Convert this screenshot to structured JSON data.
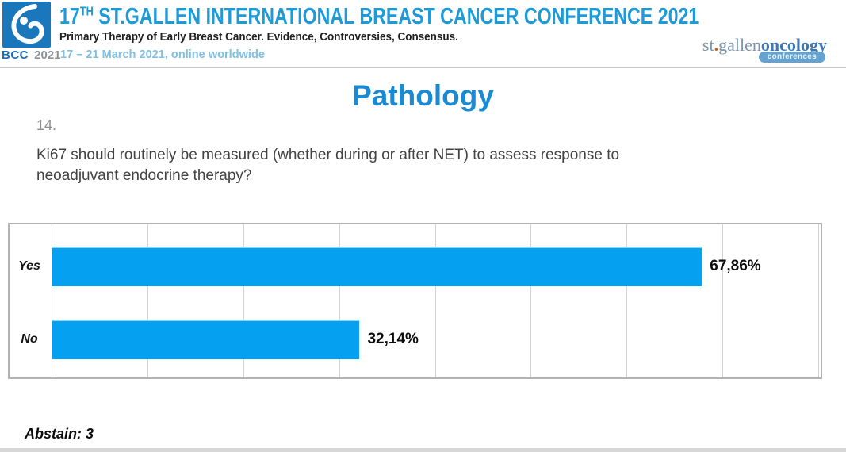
{
  "header": {
    "logo": {
      "badge_text": "BCC",
      "badge_year": "2021"
    },
    "title_num": "17",
    "title_sup": "TH",
    "title_rest": " ST.GALLEN INTERNATIONAL BREAST CANCER CONFERENCE 2021",
    "subtitle": "Primary Therapy of Early Breast Cancer. Evidence, Controversies, Consensus.",
    "date_line": "17 – 21 March 2021, online worldwide",
    "right_logo": {
      "part1": "st",
      "dot": ".",
      "part2": "gallen",
      "part3": "oncology",
      "badge": "conferences"
    }
  },
  "main": {
    "section_title": "Pathology",
    "question_number": "14.",
    "question_lines": [
      "Ki67 should routinely be measured (whether during or after NET) to assess response to",
      "neoadjuvant endocrine therapy?"
    ],
    "abstain_label": "Abstain: 3"
  },
  "chart_data": {
    "type": "bar",
    "orientation": "horizontal",
    "categories": [
      "Yes",
      "No"
    ],
    "values": [
      67.86,
      32.14
    ],
    "value_labels": [
      "67,86%",
      "32,14%"
    ],
    "xlim": [
      0,
      80
    ],
    "gridline_step": 10,
    "grid": true,
    "legend": "none",
    "bar_color": "#05a0f0",
    "bar_highlight_color": "#8ed5f7"
  },
  "colors": {
    "conference_title_blue": "#1d9ad7",
    "section_title_blue": "#1a8ad3",
    "date_light_blue": "#7ec1e4",
    "bcc_logo_blue": "#1b77bb",
    "bar_blue": "#05a0f0",
    "gridline_gray": "#d2d2d2",
    "chart_border_gray": "#b3b3b3"
  }
}
